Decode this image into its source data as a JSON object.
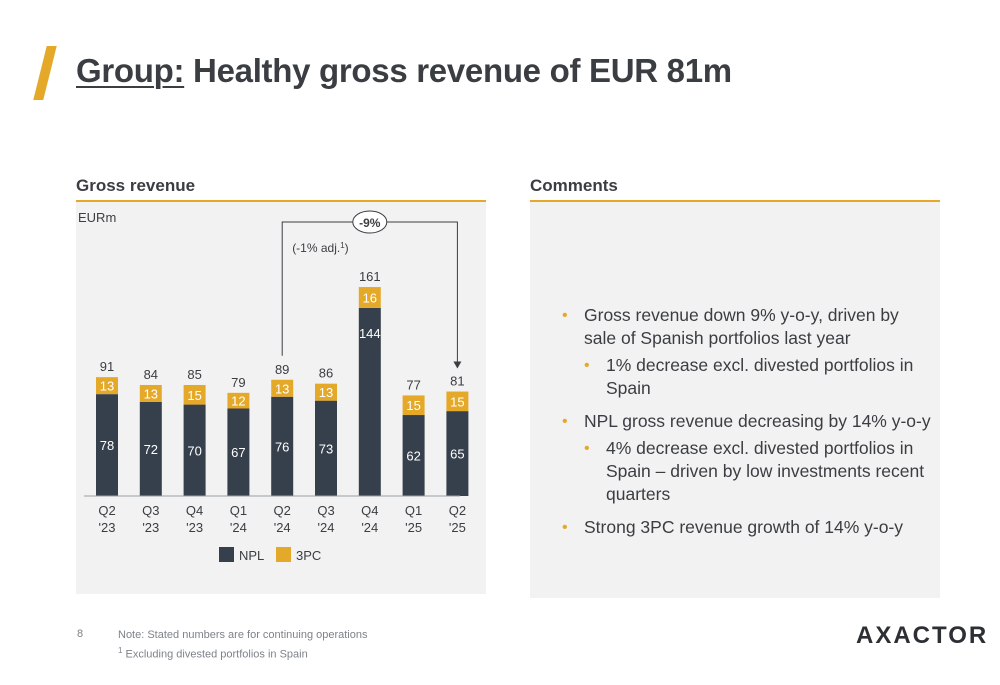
{
  "title": {
    "prefix": "Group:",
    "rest": " Healthy gross revenue of EUR 81m"
  },
  "left_panel": {
    "heading": "Gross revenue",
    "unit": "EURm"
  },
  "right_panel": {
    "heading": "Comments"
  },
  "comments": [
    {
      "level": 1,
      "text": "Gross revenue down 9% y-o-y, driven by sale of Spanish portfolios last year"
    },
    {
      "level": 2,
      "text": "1% decrease excl. divested portfolios in Spain"
    },
    {
      "level": 1,
      "text": "NPL gross revenue decreasing by 14% y-o-y"
    },
    {
      "level": 2,
      "text": "4% decrease excl. divested portfolios in Spain – driven by low investments recent quarters"
    },
    {
      "level": 1,
      "text": "Strong 3PC revenue growth of 14% y-o-y"
    }
  ],
  "chart_data": {
    "type": "bar",
    "stacked": true,
    "categories": [
      [
        "Q2",
        "'23"
      ],
      [
        "Q3",
        "'23"
      ],
      [
        "Q4",
        "'23"
      ],
      [
        "Q1",
        "'24"
      ],
      [
        "Q2",
        "'24"
      ],
      [
        "Q3",
        "'24"
      ],
      [
        "Q4",
        "'24"
      ],
      [
        "Q1",
        "'25"
      ],
      [
        "Q2",
        "'25"
      ]
    ],
    "series": [
      {
        "name": "NPL",
        "color": "#36404c",
        "values": [
          78,
          72,
          70,
          67,
          76,
          73,
          144,
          62,
          65
        ]
      },
      {
        "name": "3PC",
        "color": "#e5a92a",
        "values": [
          13,
          13,
          15,
          12,
          13,
          13,
          16,
          15,
          15
        ]
      }
    ],
    "totals": [
      91,
      84,
      85,
      79,
      89,
      86,
      161,
      77,
      81
    ],
    "ylabel": "EURm",
    "ylim": [
      0,
      170
    ],
    "legend": "bottom-center",
    "annotation": {
      "from": "Q2 '24",
      "to": "Q2 '25",
      "label": "-9%",
      "sublabel": "(-1% adj.",
      "sublabel_sup": "1",
      "sublabel_end": ")"
    }
  },
  "footer": {
    "page": "8",
    "note": "Note: Stated numbers are for continuing operations",
    "footnote_mark": "1",
    "footnote": " Excluding divested portfolios in Spain",
    "logo": "AXACTOR"
  }
}
